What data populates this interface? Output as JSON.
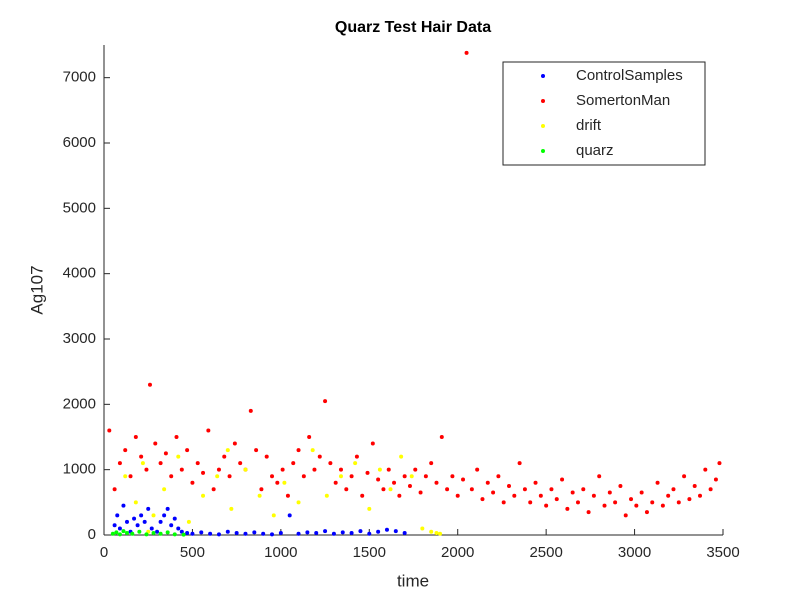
{
  "chart_data": {
    "type": "scatter",
    "title": "Quarz Test Hair Data",
    "xlabel": "time",
    "ylabel": "Ag107",
    "xlim": [
      0,
      3500
    ],
    "ylim": [
      0,
      7500
    ],
    "xticks": [
      0,
      500,
      1000,
      1500,
      2000,
      2500,
      3000,
      3500
    ],
    "yticks": [
      0,
      1000,
      2000,
      3000,
      4000,
      5000,
      6000,
      7000
    ],
    "legend": "upper right",
    "series": [
      {
        "name": "ControlSamples",
        "color": "#0000ff",
        "x": [
          60,
          75,
          90,
          110,
          130,
          150,
          170,
          190,
          210,
          230,
          250,
          270,
          300,
          320,
          340,
          360,
          380,
          400,
          420,
          440,
          470,
          500,
          550,
          600,
          650,
          700,
          750,
          800,
          850,
          900,
          950,
          1000,
          1050,
          1100,
          1150,
          1200,
          1250,
          1300,
          1350,
          1400,
          1450,
          1500,
          1550,
          1600,
          1650,
          1700
        ],
        "values": [
          150,
          300,
          100,
          450,
          200,
          50,
          250,
          150,
          300,
          200,
          400,
          100,
          50,
          200,
          300,
          400,
          150,
          250,
          100,
          50,
          30,
          20,
          40,
          20,
          10,
          50,
          30,
          20,
          40,
          20,
          10,
          30,
          300,
          20,
          40,
          30,
          60,
          20,
          40,
          30,
          60,
          20,
          50,
          80,
          60,
          30
        ]
      },
      {
        "name": "SomertonMan",
        "color": "#ff0000",
        "x": [
          30,
          60,
          90,
          120,
          150,
          180,
          210,
          240,
          260,
          290,
          320,
          350,
          380,
          410,
          440,
          470,
          500,
          530,
          560,
          590,
          620,
          650,
          680,
          710,
          740,
          770,
          800,
          830,
          860,
          890,
          920,
          950,
          980,
          1010,
          1040,
          1070,
          1100,
          1130,
          1160,
          1190,
          1220,
          1250,
          1280,
          1310,
          1340,
          1370,
          1400,
          1430,
          1460,
          1490,
          1520,
          1550,
          1580,
          1610,
          1640,
          1670,
          1700,
          1730,
          1760,
          1790,
          1820,
          1850,
          1880,
          1910,
          1940,
          1970,
          2000,
          2030,
          2050,
          2080,
          2110,
          2140,
          2170,
          2200,
          2230,
          2260,
          2290,
          2320,
          2350,
          2380,
          2410,
          2440,
          2470,
          2500,
          2530,
          2560,
          2590,
          2620,
          2650,
          2680,
          2710,
          2740,
          2770,
          2800,
          2830,
          2860,
          2890,
          2920,
          2950,
          2980,
          3010,
          3040,
          3070,
          3100,
          3130,
          3160,
          3190,
          3220,
          3250,
          3280,
          3310,
          3340,
          3370,
          3400,
          3430,
          3460,
          3480
        ],
        "values": [
          1600,
          700,
          1100,
          1300,
          900,
          1500,
          1200,
          1000,
          2300,
          1400,
          1100,
          1250,
          900,
          1500,
          1000,
          1300,
          800,
          1100,
          950,
          1600,
          700,
          1000,
          1200,
          900,
          1400,
          1100,
          1000,
          1900,
          1300,
          700,
          1200,
          900,
          800,
          1000,
          600,
          1100,
          1300,
          900,
          1500,
          1000,
          1200,
          2050,
          1100,
          800,
          1000,
          700,
          900,
          1200,
          600,
          950,
          1400,
          850,
          700,
          1000,
          800,
          600,
          900,
          750,
          1000,
          650,
          900,
          1100,
          800,
          1500,
          700,
          900,
          600,
          850,
          7380,
          700,
          1000,
          550,
          800,
          650,
          900,
          500,
          750,
          600,
          1100,
          700,
          500,
          800,
          600,
          450,
          700,
          550,
          850,
          400,
          650,
          500,
          700,
          350,
          600,
          900,
          450,
          650,
          500,
          750,
          300,
          550,
          450,
          650,
          350,
          500,
          800,
          450,
          600,
          700,
          500,
          900,
          550,
          750,
          600,
          1000,
          700,
          850,
          1100
        ]
      },
      {
        "name": "drift",
        "color": "#ffff00",
        "x": [
          120,
          180,
          220,
          250,
          280,
          340,
          420,
          480,
          560,
          640,
          700,
          720,
          800,
          880,
          960,
          1020,
          1100,
          1180,
          1260,
          1340,
          1420,
          1500,
          1560,
          1620,
          1680,
          1740,
          1800,
          1850,
          1880,
          1900
        ],
        "values": [
          900,
          500,
          1100,
          50,
          300,
          700,
          1200,
          200,
          600,
          900,
          1300,
          400,
          1000,
          600,
          300,
          800,
          500,
          1300,
          600,
          900,
          1100,
          400,
          1000,
          700,
          1200,
          900,
          100,
          50,
          30,
          20
        ]
      },
      {
        "name": "quarz",
        "color": "#00ff00",
        "x": [
          50,
          70,
          90,
          110,
          130,
          160,
          200,
          240,
          280,
          320,
          360,
          400,
          450
        ],
        "values": [
          20,
          40,
          10,
          60,
          30,
          20,
          50,
          10,
          30,
          20,
          40,
          10,
          5
        ]
      }
    ]
  }
}
